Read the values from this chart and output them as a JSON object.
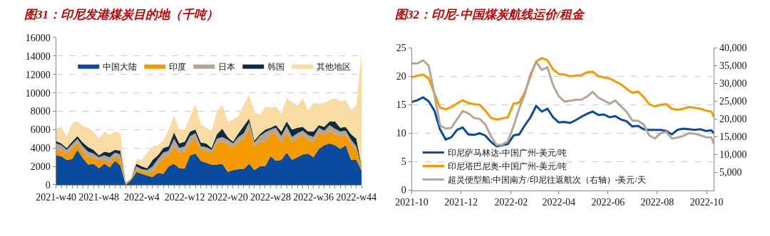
{
  "chart_data": [
    {
      "type": "area",
      "stacked": true,
      "title": "图31：印尼发港煤炭目的地（千吨）",
      "grid": "y",
      "legend": "top",
      "ylim": [
        0,
        16000
      ],
      "yticks": [
        0,
        2000,
        4000,
        6000,
        8000,
        10000,
        12000,
        14000,
        16000
      ],
      "categories": [
        "2021-w40",
        null,
        null,
        null,
        null,
        null,
        null,
        null,
        "2021-w48",
        null,
        null,
        null,
        null,
        null,
        null,
        null,
        "2022-w4",
        null,
        null,
        null,
        null,
        null,
        null,
        null,
        "2022-w12",
        null,
        null,
        null,
        null,
        null,
        null,
        null,
        "2022-w20",
        null,
        null,
        null,
        null,
        null,
        null,
        null,
        "2022-w28",
        null,
        null,
        null,
        null,
        null,
        null,
        null,
        "2022-w36",
        null,
        null,
        null,
        null,
        null,
        null,
        null,
        "2022-w44",
        null
      ],
      "series": [
        {
          "name": "中国大陆",
          "color": "#0a4a9f",
          "values": [
            3200,
            3100,
            2700,
            2800,
            3800,
            2900,
            2200,
            2300,
            1800,
            2300,
            1900,
            2600,
            2100,
            0,
            500,
            1400,
            1200,
            1000,
            850,
            1300,
            1200,
            2000,
            2300,
            1800,
            1800,
            3200,
            3400,
            2600,
            2400,
            2200,
            2200,
            2300,
            1400,
            1600,
            1700,
            1700,
            2300,
            1600,
            2000,
            2000,
            3100,
            2600,
            2700,
            3500,
            2700,
            3000,
            3300,
            3400,
            3000,
            3900,
            4300,
            4500,
            4300,
            3900,
            4300,
            2700,
            2700,
            1500
          ]
        },
        {
          "name": "印度",
          "color": "#f29a00",
          "values": [
            700,
            600,
            700,
            1200,
            800,
            700,
            800,
            600,
            900,
            400,
            600,
            500,
            700,
            100,
            200,
            300,
            300,
            300,
            550,
            1000,
            1700,
            1200,
            1900,
            1700,
            1800,
            1400,
            1600,
            1200,
            1300,
            1300,
            2400,
            2400,
            3100,
            2400,
            3000,
            3300,
            3900,
            2600,
            2700,
            2700,
            2400,
            3000,
            1800,
            2200,
            2000,
            2100,
            2100,
            1500,
            1700,
            1800,
            1100,
            1400,
            1200,
            1400,
            1200,
            1700,
            1100,
            200
          ]
        },
        {
          "name": "日本",
          "color": "#b4a597",
          "values": [
            600,
            600,
            400,
            400,
            400,
            600,
            600,
            500,
            300,
            500,
            500,
            400,
            500,
            50,
            0,
            300,
            200,
            300,
            600,
            500,
            600,
            500,
            800,
            500,
            600,
            700,
            600,
            400,
            400,
            300,
            400,
            500,
            400,
            500,
            500,
            600,
            600,
            400,
            600,
            1000,
            500,
            600,
            800,
            700,
            500,
            500,
            500,
            500,
            500,
            500,
            500,
            600,
            600,
            500,
            400,
            500,
            400,
            100
          ]
        },
        {
          "name": "韩国",
          "color": "#0d2a3f",
          "values": [
            250,
            200,
            200,
            300,
            300,
            400,
            500,
            400,
            200,
            400,
            500,
            300,
            400,
            50,
            0,
            300,
            300,
            200,
            700,
            400,
            500,
            500,
            700,
            500,
            500,
            500,
            400,
            400,
            400,
            200,
            500,
            900,
            300,
            200,
            400,
            800,
            400,
            200,
            200,
            300,
            200,
            300,
            500,
            500,
            800,
            600,
            400,
            400,
            600,
            300,
            400,
            400,
            800,
            400,
            400,
            600,
            800,
            100
          ]
        },
        {
          "name": "其他地区",
          "color": "#f8dca4",
          "values": [
            1350,
            1800,
            1200,
            2000,
            1600,
            1800,
            2100,
            2000,
            1800,
            2200,
            1900,
            2000,
            1900,
            100,
            0,
            500,
            700,
            1700,
            1500,
            1100,
            800,
            1800,
            1800,
            1500,
            1300,
            1600,
            2800,
            2000,
            1700,
            1800,
            2500,
            2600,
            1700,
            2400,
            1900,
            2300,
            2600,
            3100,
            2100,
            2500,
            2200,
            2000,
            1900,
            2500,
            3000,
            2400,
            3100,
            2300,
            3100,
            2300,
            2600,
            2300,
            2500,
            2900,
            2900,
            2600,
            3700,
            12700
          ]
        }
      ]
    },
    {
      "type": "line",
      "title": "图32：印尼-中国煤炭航线运价/租金",
      "grid": "y",
      "legend": "bottom left",
      "xlim": [
        "2021-10-01",
        "2022-10-10"
      ],
      "xticks": [
        {
          "value": "2021-10-01",
          "label": "2021-10"
        },
        {
          "value": "2021-12-01",
          "label": "2021-12"
        },
        {
          "value": "2022-02-01",
          "label": "2022-02"
        },
        {
          "value": "2022-04-01",
          "label": "2022-04"
        },
        {
          "value": "2022-06-01",
          "label": "2022-06"
        },
        {
          "value": "2022-08-01",
          "label": "2022-08"
        },
        {
          "value": "2022-10-01",
          "label": "2022-10"
        }
      ],
      "ylim": [
        0,
        25
      ],
      "yticks": [
        0,
        5,
        10,
        15,
        20,
        25
      ],
      "y2lim": [
        0,
        40000
      ],
      "y2ticks": [
        {
          "value": 5000,
          "label": "5,000"
        },
        {
          "value": 10000,
          "label": "10,000"
        },
        {
          "value": 15000,
          "label": "15,000"
        },
        {
          "value": 20000,
          "label": "20,000"
        },
        {
          "value": 25000,
          "label": "25,000"
        },
        {
          "value": 30000,
          "label": "30,000"
        },
        {
          "value": 35000,
          "label": "35,000"
        },
        {
          "value": 40000,
          "label": "40,000"
        }
      ],
      "x": [
        "2021-10-01",
        "2021-10-08",
        "2021-10-15",
        "2021-10-22",
        "2021-10-29",
        "2021-11-05",
        "2021-11-12",
        "2021-11-19",
        "2021-11-26",
        "2021-12-03",
        "2021-12-10",
        "2021-12-17",
        "2021-12-24",
        "2021-12-31",
        "2022-01-07",
        "2022-01-14",
        "2022-01-21",
        "2022-01-28",
        "2022-02-04",
        "2022-02-11",
        "2022-02-18",
        "2022-02-25",
        "2022-03-04",
        "2022-03-11",
        "2022-03-18",
        "2022-03-25",
        "2022-04-01",
        "2022-04-08",
        "2022-04-15",
        "2022-04-22",
        "2022-04-29",
        "2022-05-06",
        "2022-05-13",
        "2022-05-20",
        "2022-05-27",
        "2022-06-03",
        "2022-06-10",
        "2022-06-17",
        "2022-06-24",
        "2022-07-01",
        "2022-07-08",
        "2022-07-15",
        "2022-07-22",
        "2022-07-29",
        "2022-08-05",
        "2022-08-12",
        "2022-08-19",
        "2022-08-26",
        "2022-09-02",
        "2022-09-09",
        "2022-09-16",
        "2022-09-23",
        "2022-09-30",
        "2022-10-07",
        "2022-10-10"
      ],
      "series": [
        {
          "name": "印尼萨马林达-中国广州-美元/吨",
          "color": "#0a4a9f",
          "values": [
            15.5,
            15.8,
            16.3,
            15.6,
            14.0,
            10.7,
            8.9,
            9.3,
            10.6,
            11.0,
            9.8,
            9.7,
            10.0,
            9.6,
            8.5,
            7.7,
            7.9,
            8.1,
            9.6,
            9.8,
            11.4,
            12.8,
            14.8,
            13.8,
            14.3,
            12.8,
            11.9,
            12.0,
            11.8,
            12.3,
            12.9,
            13.4,
            13.8,
            13.2,
            13.3,
            12.8,
            13.0,
            12.4,
            12.1,
            11.2,
            11.3,
            10.7,
            10.6,
            10.6,
            10.6,
            10.4,
            9.8,
            10.6,
            10.8,
            10.7,
            10.6,
            10.7,
            10.4,
            10.5,
            10.0
          ]
        },
        {
          "name": "印尼塔巴尼奥-中国广州-美元/吨",
          "color": "#f29a00",
          "values": [
            19.8,
            20.1,
            20.3,
            19.6,
            17.0,
            14.5,
            14.2,
            14.6,
            15.2,
            15.8,
            15.3,
            15.1,
            15.0,
            14.0,
            12.7,
            12.4,
            12.6,
            12.8,
            15.2,
            15.4,
            17.2,
            20.0,
            22.6,
            23.2,
            22.8,
            21.2,
            20.4,
            20.3,
            20.0,
            20.1,
            20.2,
            20.7,
            20.8,
            20.0,
            19.8,
            19.6,
            19.1,
            18.6,
            17.8,
            17.1,
            17.3,
            16.4,
            15.1,
            14.7,
            15.0,
            15.1,
            14.3,
            14.1,
            14.3,
            14.6,
            14.5,
            14.3,
            14.0,
            13.8,
            12.8
          ]
        },
        {
          "name": "超灵便型船:中国南方/印尼往返航次（右轴）-美元/天",
          "color": "#b4a597",
          "axis": "y2",
          "values": [
            35600,
            35600,
            36500,
            35000,
            27000,
            18300,
            17300,
            17500,
            19900,
            22200,
            21600,
            20300,
            20000,
            18500,
            15200,
            12700,
            12800,
            13800,
            18000,
            22900,
            27000,
            32600,
            36000,
            33800,
            34500,
            29500,
            26400,
            24900,
            25100,
            25400,
            25400,
            26300,
            27600,
            26000,
            25200,
            24300,
            25200,
            23600,
            22000,
            19600,
            19500,
            18500,
            15400,
            14500,
            16000,
            16400,
            14500,
            14800,
            15200,
            16000,
            15900,
            15400,
            14900,
            14800,
            13000
          ]
        }
      ]
    }
  ]
}
